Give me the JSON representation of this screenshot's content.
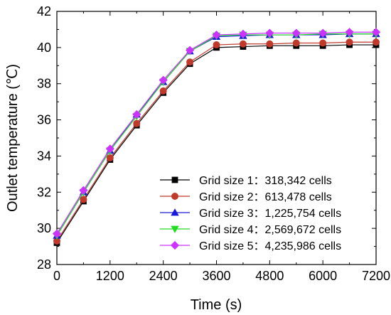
{
  "chart_data": {
    "type": "line",
    "xlabel": "Time (s)",
    "ylabel": "Outlet temperature (℃)",
    "xlim": [
      0,
      7200
    ],
    "ylim": [
      28,
      42
    ],
    "xticks": [
      0,
      1200,
      2400,
      3600,
      4800,
      6000,
      7200
    ],
    "yticks": [
      28,
      30,
      32,
      34,
      36,
      38,
      40,
      42
    ],
    "grid": false,
    "legend_position": "bottom-right",
    "x": [
      0,
      600,
      1200,
      1800,
      2400,
      3000,
      3600,
      4200,
      4800,
      5400,
      6000,
      6600,
      7200
    ],
    "series": [
      {
        "name": "Grid size 1：318,342 cells",
        "marker": "square",
        "color": "#000000",
        "values": [
          29.2,
          31.5,
          33.8,
          35.7,
          37.5,
          39.1,
          40.0,
          40.05,
          40.1,
          40.1,
          40.1,
          40.15,
          40.15
        ]
      },
      {
        "name": "Grid size 2：613,478 cells",
        "marker": "circle",
        "color": "#c0392b",
        "values": [
          29.3,
          31.6,
          33.9,
          35.8,
          37.6,
          39.2,
          40.15,
          40.2,
          40.2,
          40.25,
          40.25,
          40.3,
          40.3
        ]
      },
      {
        "name": "Grid size 3：1,225,754 cells",
        "marker": "triangle-up",
        "color": "#1a1adb",
        "values": [
          29.6,
          32.0,
          34.3,
          36.3,
          38.1,
          39.8,
          40.6,
          40.65,
          40.7,
          40.7,
          40.7,
          40.75,
          40.75
        ]
      },
      {
        "name": "Grid size 4：2,569,672 cells",
        "marker": "triangle-down",
        "color": "#22dd22",
        "values": [
          29.6,
          32.0,
          34.3,
          36.2,
          38.1,
          39.8,
          40.65,
          40.7,
          40.7,
          40.7,
          40.75,
          40.75,
          40.75
        ]
      },
      {
        "name": "Grid size 5：4,235,986 cells",
        "marker": "diamond",
        "color": "#cc33ff",
        "values": [
          29.7,
          32.1,
          34.4,
          36.3,
          38.2,
          39.85,
          40.7,
          40.75,
          40.8,
          40.8,
          40.8,
          40.85,
          40.85
        ]
      }
    ]
  }
}
